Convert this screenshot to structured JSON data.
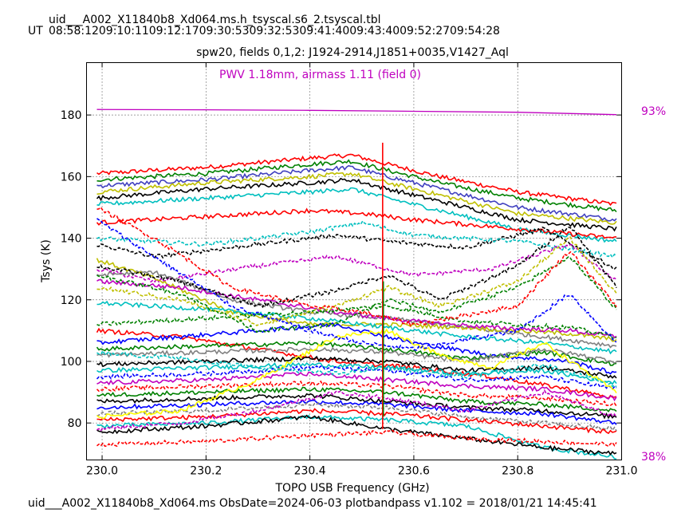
{
  "header": {
    "filename": "uid___A002_X11840b8_Xd064.ms.h_tsyscal.s6_2.tsyscal.tbl",
    "ut_prefix": "UT",
    "ut_times": "08:58:1209:10:1109:12:1709:30:5309:32:5309:41:4009:43:4009:52:2709:54:28"
  },
  "footer": {
    "text": "uid___A002_X11840b8_Xd064.ms  ObsDate=2024-06-03   plotbandpass v1.102 = 2018/01/21 14:45:41"
  },
  "chart_data": {
    "type": "line",
    "title": "spw20,  fields 0,1,2: J1924-2914,J1851+0035,V1427_Aql",
    "xlabel": "TOPO USB Frequency (GHz)",
    "ylabel": "Tsys (K)",
    "xlim": [
      229.97,
      231.0
    ],
    "ylim": [
      68,
      197
    ],
    "xticks": [
      230.0,
      230.2,
      230.4,
      230.6,
      230.8,
      231.0
    ],
    "xtick_labels": [
      "230.0",
      "230.2",
      "230.4",
      "230.6",
      "230.8",
      "231.0"
    ],
    "yticks": [
      80,
      100,
      120,
      140,
      160,
      180
    ],
    "ytick_labels": [
      "80",
      "100",
      "120",
      "140",
      "160",
      "180"
    ],
    "grid": true,
    "annotation": "PWV 1.18mm, airmass 1.11 (field 0)",
    "right_axis_labels": {
      "top": "93%",
      "bottom": "38%"
    },
    "spike_x": 230.54,
    "transmission_curve": {
      "color": "#bf00bf",
      "x": [
        229.99,
        230.2,
        230.4,
        230.6,
        230.8,
        230.99
      ],
      "y": [
        181.8,
        181.7,
        181.5,
        181.2,
        180.9,
        180.1
      ]
    },
    "series": [
      {
        "color": "#ff0000",
        "style": "solid",
        "x": [
          229.99,
          230.2,
          230.4,
          230.48,
          230.55,
          230.65,
          230.8,
          230.99
        ],
        "y": [
          161,
          163,
          166,
          167,
          164,
          160,
          155,
          151
        ]
      },
      {
        "color": "#008000",
        "style": "solid",
        "x": [
          229.99,
          230.2,
          230.4,
          230.48,
          230.55,
          230.65,
          230.8,
          230.99
        ],
        "y": [
          159,
          161,
          164,
          165,
          162,
          158,
          153,
          149
        ]
      },
      {
        "color": "#4040c0",
        "style": "solid",
        "x": [
          229.99,
          230.2,
          230.4,
          230.48,
          230.55,
          230.65,
          230.8,
          230.99
        ],
        "y": [
          157,
          159,
          162,
          163,
          160,
          156,
          150,
          146
        ]
      },
      {
        "color": "#bfbf00",
        "style": "solid",
        "x": [
          229.99,
          230.2,
          230.4,
          230.48,
          230.55,
          230.65,
          230.8,
          230.99
        ],
        "y": [
          155,
          158,
          160,
          161,
          158,
          154,
          148,
          145
        ]
      },
      {
        "color": "#000000",
        "style": "solid",
        "x": [
          229.99,
          230.2,
          230.4,
          230.48,
          230.55,
          230.65,
          230.8,
          230.99
        ],
        "y": [
          153,
          156,
          158,
          159,
          156,
          152,
          146,
          143
        ]
      },
      {
        "color": "#00bfbf",
        "style": "solid",
        "x": [
          229.99,
          230.2,
          230.4,
          230.48,
          230.55,
          230.65,
          230.8,
          230.99
        ],
        "y": [
          151,
          153,
          155,
          156,
          153,
          149,
          143,
          139
        ]
      },
      {
        "color": "#ff0000",
        "style": "solid",
        "x": [
          229.99,
          230.2,
          230.4,
          230.5,
          230.6,
          230.8,
          230.99
        ],
        "y": [
          145,
          147,
          149,
          148,
          146,
          143,
          140
        ]
      },
      {
        "color": "#000000",
        "style": "dashed",
        "x": [
          229.99,
          230.1,
          230.3,
          230.45,
          230.55,
          230.7,
          230.85,
          230.99
        ],
        "y": [
          138,
          134,
          138,
          141,
          139,
          137,
          143,
          130
        ]
      },
      {
        "color": "#00bfbf",
        "style": "dashed",
        "x": [
          229.99,
          230.2,
          230.4,
          230.5,
          230.6,
          230.8,
          230.99
        ],
        "y": [
          140,
          138,
          142,
          145,
          141,
          139,
          134
        ]
      },
      {
        "color": "#bf00bf",
        "style": "dashed",
        "x": [
          229.99,
          230.1,
          230.3,
          230.45,
          230.6,
          230.75,
          230.9,
          230.99
        ],
        "y": [
          130,
          126,
          131,
          134,
          128,
          130,
          138,
          126
        ]
      },
      {
        "color": "#808080",
        "style": "solid",
        "x": [
          229.99,
          230.1,
          230.25,
          230.4,
          230.55,
          230.7,
          230.85,
          230.99
        ],
        "y": [
          128,
          129,
          120,
          116,
          114,
          111,
          108,
          105
        ]
      },
      {
        "color": "#bfbf00",
        "style": "solid",
        "x": [
          229.99,
          230.1,
          230.25,
          230.4,
          230.55,
          230.7,
          230.9,
          230.99
        ],
        "y": [
          133,
          127,
          116,
          112,
          112,
          111,
          109,
          107
        ]
      },
      {
        "color": "#bf00bf",
        "style": "solid",
        "x": [
          229.99,
          230.15,
          230.3,
          230.45,
          230.6,
          230.75,
          230.9,
          230.99
        ],
        "y": [
          126,
          124,
          120,
          116,
          113,
          111,
          110,
          108
        ]
      },
      {
        "color": "#00bfbf",
        "style": "solid",
        "x": [
          229.99,
          230.2,
          230.4,
          230.55,
          230.7,
          230.85,
          230.99
        ],
        "y": [
          119,
          117,
          114,
          111,
          108,
          106,
          103
        ]
      },
      {
        "color": "#008000",
        "style": "dashed",
        "x": [
          229.99,
          230.2,
          230.4,
          230.55,
          230.7,
          230.9,
          230.99
        ],
        "y": [
          112,
          114,
          116,
          118,
          113,
          111,
          108
        ]
      },
      {
        "color": "#ff0000",
        "style": "solid",
        "x": [
          229.99,
          230.15,
          230.3,
          230.45,
          230.6,
          230.75,
          230.9,
          230.99
        ],
        "y": [
          110,
          108,
          104,
          100,
          98,
          95,
          91,
          88
        ]
      },
      {
        "color": "#0000ff",
        "style": "solid",
        "x": [
          229.99,
          230.15,
          230.3,
          230.45,
          230.6,
          230.75,
          230.9,
          230.99
        ],
        "y": [
          106,
          108,
          110,
          112,
          106,
          102,
          100,
          96
        ]
      },
      {
        "color": "#008000",
        "style": "solid",
        "x": [
          229.99,
          230.2,
          230.4,
          230.55,
          230.7,
          230.85,
          230.99
        ],
        "y": [
          104,
          105,
          106,
          104,
          101,
          103,
          99
        ]
      },
      {
        "color": "#808080",
        "style": "solid",
        "x": [
          229.99,
          230.2,
          230.4,
          230.55,
          230.7,
          230.85,
          230.99
        ],
        "y": [
          102,
          103,
          104,
          103,
          100,
          104,
          100
        ]
      },
      {
        "color": "#000000",
        "style": "solid",
        "x": [
          229.99,
          230.2,
          230.4,
          230.55,
          230.7,
          230.85,
          230.99
        ],
        "y": [
          99,
          100,
          101,
          100,
          97,
          98,
          95
        ]
      },
      {
        "color": "#00bfbf",
        "style": "solid",
        "x": [
          229.99,
          230.2,
          230.4,
          230.55,
          230.7,
          230.85,
          230.99
        ],
        "y": [
          97,
          98,
          99,
          98,
          96,
          97,
          93
        ]
      },
      {
        "color": "#0000ff",
        "style": "dashed",
        "x": [
          229.99,
          230.2,
          230.4,
          230.55,
          230.7,
          230.85,
          230.99
        ],
        "y": [
          95,
          96,
          98,
          97,
          94,
          95,
          91
        ]
      },
      {
        "color": "#bf00bf",
        "style": "solid",
        "x": [
          229.99,
          230.2,
          230.4,
          230.55,
          230.7,
          230.85,
          230.99
        ],
        "y": [
          93,
          94,
          96,
          94,
          92,
          91,
          88
        ]
      },
      {
        "color": "#ff0000",
        "style": "dashed",
        "x": [
          229.99,
          230.2,
          230.4,
          230.55,
          230.7,
          230.85,
          230.99
        ],
        "y": [
          91,
          92,
          93,
          92,
          89,
          88,
          86
        ]
      },
      {
        "color": "#008000",
        "style": "solid",
        "x": [
          229.99,
          230.2,
          230.4,
          230.55,
          230.7,
          230.85,
          230.99
        ],
        "y": [
          89,
          90,
          91,
          90,
          87,
          86,
          84
        ]
      },
      {
        "color": "#000000",
        "style": "solid",
        "x": [
          229.99,
          230.2,
          230.4,
          230.55,
          230.7,
          230.85,
          230.99
        ],
        "y": [
          87,
          88,
          89,
          87,
          85,
          84,
          82
        ]
      },
      {
        "color": "#0000ff",
        "style": "solid",
        "x": [
          229.99,
          230.2,
          230.4,
          230.55,
          230.7,
          230.85,
          230.99
        ],
        "y": [
          85,
          86,
          87,
          86,
          84,
          83,
          80
        ]
      },
      {
        "color": "#808080",
        "style": "dashed",
        "x": [
          229.99,
          230.2,
          230.4,
          230.55,
          230.7,
          230.85,
          230.99
        ],
        "y": [
          83,
          84,
          86,
          85,
          82,
          80,
          78
        ]
      },
      {
        "color": "#ff0000",
        "style": "solid",
        "x": [
          229.99,
          230.2,
          230.4,
          230.55,
          230.7,
          230.85,
          230.99
        ],
        "y": [
          81,
          82,
          84,
          83,
          81,
          79,
          77
        ]
      },
      {
        "color": "#00bfbf",
        "style": "solid",
        "x": [
          229.99,
          230.2,
          230.4,
          230.55,
          230.7,
          230.85,
          230.99
        ],
        "y": [
          79,
          80,
          82,
          81,
          79,
          72,
          69
        ]
      },
      {
        "color": "#000000",
        "style": "solid",
        "x": [
          229.99,
          230.2,
          230.4,
          230.55,
          230.7,
          230.85,
          230.99
        ],
        "y": [
          77,
          79,
          82,
          78,
          75,
          72,
          70
        ]
      },
      {
        "color": "#ff0000",
        "style": "dashed",
        "x": [
          229.99,
          230.2,
          230.4,
          230.55,
          230.7,
          230.85,
          230.99
        ],
        "y": [
          73,
          74,
          76,
          77,
          75,
          74,
          73
        ]
      },
      {
        "color": "#ffff00",
        "style": "solid",
        "x": [
          229.99,
          230.15,
          230.3,
          230.45,
          230.55,
          230.65,
          230.75,
          230.85,
          230.99
        ],
        "y": [
          82,
          84,
          94,
          108,
          110,
          102,
          98,
          106,
          90
        ]
      },
      {
        "color": "#bfbf00",
        "style": "dashed",
        "x": [
          229.99,
          230.15,
          230.3,
          230.45,
          230.55,
          230.65,
          230.8,
          230.9,
          230.99
        ],
        "y": [
          124,
          120,
          112,
          118,
          124,
          118,
          126,
          140,
          122
        ]
      },
      {
        "color": "#000000",
        "style": "dashed",
        "x": [
          229.99,
          230.15,
          230.3,
          230.45,
          230.55,
          230.65,
          230.8,
          230.9,
          230.99
        ],
        "y": [
          131,
          126,
          118,
          123,
          128,
          120,
          131,
          144,
          124
        ]
      },
      {
        "color": "#008000",
        "style": "dashed",
        "x": [
          229.99,
          230.15,
          230.3,
          230.45,
          230.55,
          230.65,
          230.8,
          230.9,
          230.99
        ],
        "y": [
          128,
          122,
          110,
          112,
          120,
          116,
          124,
          134,
          117
        ]
      },
      {
        "color": "#ff0000",
        "style": "dashed",
        "x": [
          229.99,
          230.1,
          230.25,
          230.4,
          230.5,
          230.6,
          230.8,
          230.9,
          230.99
        ],
        "y": [
          150,
          140,
          124,
          118,
          116,
          112,
          118,
          136,
          118
        ]
      },
      {
        "color": "#0000ff",
        "style": "dashed",
        "x": [
          229.99,
          230.1,
          230.25,
          230.4,
          230.5,
          230.6,
          230.8,
          230.9,
          230.99
        ],
        "y": [
          146,
          134,
          118,
          110,
          106,
          104,
          110,
          122,
          106
        ]
      },
      {
        "color": "#bf00bf",
        "style": "dashed",
        "x": [
          229.99,
          230.15,
          230.3,
          230.45,
          230.55,
          230.7,
          230.85,
          230.99
        ],
        "y": [
          78,
          80,
          84,
          90,
          88,
          84,
          90,
          82
        ]
      },
      {
        "color": "#00bfbf",
        "style": "dashed",
        "x": [
          229.99,
          230.15,
          230.3,
          230.45,
          230.55,
          230.7,
          230.85,
          230.99
        ],
        "y": [
          103,
          101,
          98,
          96,
          98,
          95,
          99,
          92
        ]
      }
    ]
  }
}
